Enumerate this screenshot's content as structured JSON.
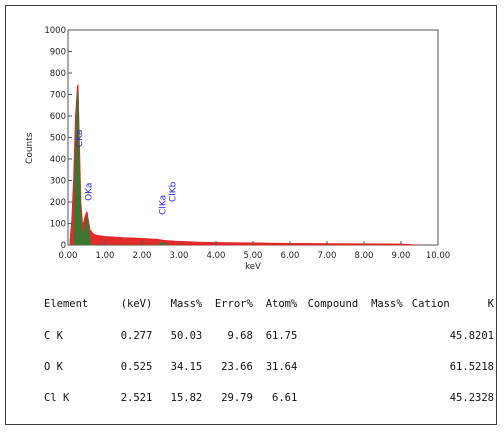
{
  "chart_data": {
    "type": "area",
    "ylabel": "Counts",
    "xlabel": "keV",
    "xlim": [
      0,
      10
    ],
    "ylim": [
      0,
      1000
    ],
    "xticks": [
      "0.00",
      "1.00",
      "2.00",
      "3.00",
      "4.00",
      "5.00",
      "6.00",
      "7.00",
      "8.00",
      "9.00",
      "10.00"
    ],
    "yticks": [
      "0",
      "100",
      "200",
      "300",
      "400",
      "500",
      "600",
      "700",
      "800",
      "900",
      "1000"
    ],
    "grid": false,
    "series": [
      {
        "color": "#e02020",
        "x": [
          0.05,
          0.1,
          0.15,
          0.2,
          0.25,
          0.277,
          0.3,
          0.35,
          0.4,
          0.45,
          0.5,
          0.525,
          0.55,
          0.6,
          0.7,
          0.8,
          1.0,
          1.2,
          1.5,
          1.8,
          2.1,
          2.4,
          2.6,
          2.9,
          3.5,
          4.0,
          5.0,
          6.0,
          7.0,
          8.0,
          9.0,
          9.5
        ],
        "y": [
          20,
          120,
          310,
          600,
          740,
          745,
          560,
          200,
          90,
          130,
          155,
          150,
          120,
          70,
          50,
          45,
          40,
          38,
          35,
          33,
          30,
          27,
          22,
          18,
          14,
          12,
          10,
          8,
          7,
          6,
          5,
          0
        ]
      },
      {
        "color": "#2e7d32",
        "x": [
          0.15,
          0.2,
          0.25,
          0.277,
          0.3,
          0.35,
          0.4,
          0.45,
          0.5,
          0.525,
          0.55,
          0.6,
          2.45,
          2.521,
          2.6,
          2.7
        ],
        "y": [
          0,
          420,
          700,
          720,
          430,
          120,
          40,
          80,
          135,
          130,
          95,
          0,
          0,
          12,
          8,
          0
        ]
      }
    ],
    "annotations": [
      {
        "text": "CKa",
        "x": 0.277,
        "y": 455
      },
      {
        "text": "OKa",
        "x": 0.525,
        "y": 205
      },
      {
        "text": "ClKa",
        "x": 2.521,
        "y": 140
      },
      {
        "text": "ClKb",
        "x": 2.8,
        "y": 200
      }
    ]
  },
  "table": {
    "headers": [
      "Element",
      "(keV)",
      "Mass%",
      "Error%",
      "Atom%",
      "Compound",
      "Mass%",
      "Cation",
      "K"
    ],
    "rows": [
      {
        "element": "C K",
        "kev": "0.277",
        "mass": "50.03",
        "error": "9.68",
        "atom": "61.75",
        "compound": "",
        "mass2": "",
        "cation": "",
        "k": "45.8201"
      },
      {
        "element": "O K",
        "kev": "0.525",
        "mass": "34.15",
        "error": "23.66",
        "atom": "31.64",
        "compound": "",
        "mass2": "",
        "cation": "",
        "k": "61.5218"
      },
      {
        "element": "Cl K",
        "kev": "2.521",
        "mass": "15.82",
        "error": "29.79",
        "atom": "6.61",
        "compound": "",
        "mass2": "",
        "cation": "",
        "k": "45.2328"
      }
    ]
  }
}
